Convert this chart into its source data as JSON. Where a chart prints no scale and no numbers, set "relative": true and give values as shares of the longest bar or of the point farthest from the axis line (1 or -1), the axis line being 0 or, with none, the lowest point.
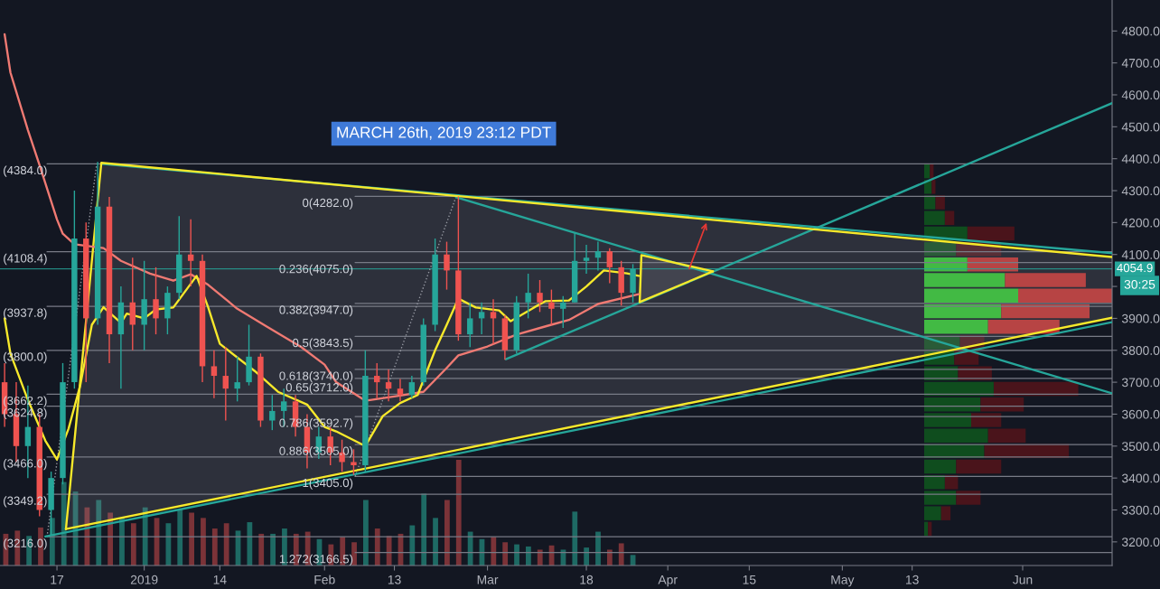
{
  "chart_data": [
    {
      "type": "candlestick",
      "x": [
        "2018-12-08",
        "2018-12-10",
        "2018-12-12",
        "2018-12-14",
        "2018-12-16",
        "2018-12-18",
        "2018-12-20",
        "2018-12-22",
        "2018-12-24",
        "2018-12-26",
        "2018-12-28",
        "2018-12-30",
        "2019-01-01",
        "2019-01-03",
        "2019-01-05",
        "2019-01-07",
        "2019-01-09",
        "2019-01-11",
        "2019-01-13",
        "2019-01-15",
        "2019-01-17",
        "2019-01-19",
        "2019-01-21",
        "2019-01-23",
        "2019-01-25",
        "2019-01-27",
        "2019-01-29",
        "2019-01-31",
        "2019-02-02",
        "2019-02-04",
        "2019-02-06",
        "2019-02-08",
        "2019-02-10",
        "2019-02-12",
        "2019-02-14",
        "2019-02-16",
        "2019-02-18",
        "2019-02-20",
        "2019-02-22",
        "2019-02-24",
        "2019-02-26",
        "2019-02-28",
        "2019-03-02",
        "2019-03-04",
        "2019-03-06",
        "2019-03-08",
        "2019-03-10",
        "2019-03-12",
        "2019-03-14",
        "2019-03-16",
        "2019-03-18",
        "2019-03-20",
        "2019-03-22",
        "2019-03-24",
        "2019-03-26"
      ],
      "ohlc": [
        [
          3700,
          3760,
          3560,
          3600
        ],
        [
          3600,
          3700,
          3450,
          3500
        ],
        [
          3500,
          3690,
          3400,
          3560
        ],
        [
          3560,
          3600,
          3280,
          3300
        ],
        [
          3300,
          3420,
          3220,
          3400
        ],
        [
          3400,
          3760,
          3380,
          3700
        ],
        [
          3700,
          4300,
          3680,
          4150
        ],
        [
          4150,
          4200,
          3700,
          3900
        ],
        [
          3900,
          4390,
          3880,
          4250
        ],
        [
          4250,
          4280,
          3760,
          3850
        ],
        [
          3850,
          4000,
          3680,
          3950
        ],
        [
          3950,
          4090,
          3800,
          3880
        ],
        [
          3880,
          4080,
          3800,
          3960
        ],
        [
          3960,
          4060,
          3850,
          3900
        ],
        [
          3900,
          4000,
          3850,
          3980
        ],
        [
          3980,
          4220,
          3960,
          4100
        ],
        [
          4100,
          4210,
          4000,
          4080
        ],
        [
          4080,
          4100,
          3700,
          3750
        ],
        [
          3750,
          3800,
          3650,
          3720
        ],
        [
          3720,
          3810,
          3580,
          3680
        ],
        [
          3680,
          3780,
          3640,
          3700
        ],
        [
          3700,
          3880,
          3690,
          3780
        ],
        [
          3780,
          3790,
          3560,
          3580
        ],
        [
          3580,
          3660,
          3550,
          3610
        ],
        [
          3610,
          3680,
          3560,
          3640
        ],
        [
          3640,
          3660,
          3530,
          3560
        ],
        [
          3560,
          3600,
          3430,
          3480
        ],
        [
          3480,
          3560,
          3460,
          3530
        ],
        [
          3530,
          3560,
          3440,
          3480
        ],
        [
          3480,
          3520,
          3420,
          3450
        ],
        [
          3450,
          3490,
          3410,
          3440
        ],
        [
          3440,
          3800,
          3420,
          3720
        ],
        [
          3720,
          3760,
          3650,
          3700
        ],
        [
          3700,
          3740,
          3640,
          3680
        ],
        [
          3680,
          3710,
          3640,
          3660
        ],
        [
          3660,
          3720,
          3650,
          3700
        ],
        [
          3700,
          3900,
          3690,
          3880
        ],
        [
          3880,
          4150,
          3860,
          4100
        ],
        [
          4100,
          4140,
          3990,
          4050
        ],
        [
          4050,
          4282,
          3830,
          3850
        ],
        [
          3850,
          3950,
          3810,
          3900
        ],
        [
          3900,
          3950,
          3850,
          3920
        ],
        [
          3920,
          3960,
          3820,
          3900
        ],
        [
          3900,
          3910,
          3770,
          3800
        ],
        [
          3800,
          3970,
          3790,
          3950
        ],
        [
          3950,
          4040,
          3900,
          3980
        ],
        [
          3980,
          4020,
          3920,
          3950
        ],
        [
          3950,
          3990,
          3880,
          3930
        ],
        [
          3930,
          3970,
          3870,
          3950
        ],
        [
          3950,
          4170,
          3950,
          4080
        ],
        [
          4080,
          4130,
          4040,
          4090
        ],
        [
          4090,
          4140,
          4050,
          4110
        ],
        [
          4110,
          4120,
          4010,
          4060
        ],
        [
          4060,
          4080,
          3940,
          3980
        ],
        [
          3980,
          4070,
          3950,
          4054.9
        ]
      ],
      "colors": [
        "#ef5350",
        "#ef5350",
        "#26a69a",
        "#ef5350",
        "#26a69a",
        "#26a69a",
        "#26a69a",
        "#ef5350",
        "#26a69a",
        "#ef5350",
        "#26a69a",
        "#ef5350",
        "#26a69a",
        "#ef5350",
        "#26a69a",
        "#26a69a",
        "#ef5350",
        "#ef5350",
        "#ef5350",
        "#ef5350",
        "#26a69a",
        "#26a69a",
        "#ef5350",
        "#26a69a",
        "#26a69a",
        "#ef5350",
        "#ef5350",
        "#26a69a",
        "#ef5350",
        "#ef5350",
        "#ef5350",
        "#26a69a",
        "#ef5350",
        "#ef5350",
        "#ef5350",
        "#26a69a",
        "#26a69a",
        "#26a69a",
        "#ef5350",
        "#ef5350",
        "#26a69a",
        "#26a69a",
        "#ef5350",
        "#ef5350",
        "#26a69a",
        "#26a69a",
        "#ef5350",
        "#ef5350",
        "#26a69a",
        "#26a69a",
        "#26a69a",
        "#26a69a",
        "#ef5350",
        "#ef5350",
        "#26a69a"
      ],
      "series": [
        {
          "type": "line",
          "name": "(4384.0)",
          "color": "#787b86",
          "x": [
            "2018-12-15T07:00",
            "2019-06-16T09:00"
          ],
          "values": [
            4384,
            4384
          ]
        },
        {
          "type": "line",
          "name": "(4108.4)",
          "color": "#787b86",
          "x": [
            "2018-12-15T07:00",
            "2019-06-16T09:00"
          ],
          "values": [
            4108.4,
            4108.4
          ]
        },
        {
          "type": "line",
          "name": "(3937.8)",
          "color": "#787b86",
          "x": [
            "2018-12-15T07:00",
            "2019-06-16T09:00"
          ],
          "values": [
            3937.8,
            3937.8
          ]
        },
        {
          "type": "line",
          "name": "(3800.0)",
          "color": "#787b86",
          "x": [
            "2018-12-15T07:00",
            "2019-06-16T09:00"
          ],
          "values": [
            3800,
            3800
          ]
        },
        {
          "type": "line",
          "name": "(3662.2)",
          "color": "#787b86",
          "x": [
            "2018-12-15T07:00",
            "2019-06-16T09:00"
          ],
          "values": [
            3662.2,
            3662.2
          ]
        },
        {
          "type": "line",
          "name": "(3624.8)",
          "color": "#787b86",
          "x": [
            "2018-12-15T07:00",
            "2019-06-16T09:00"
          ],
          "values": [
            3624.8,
            3624.8
          ]
        },
        {
          "type": "line",
          "name": "(3466.0)",
          "color": "#787b86",
          "x": [
            "2018-12-15T07:00",
            "2019-06-16T09:00"
          ],
          "values": [
            3466,
            3466
          ]
        },
        {
          "type": "line",
          "name": "(3349.2)",
          "color": "#787b86",
          "x": [
            "2018-12-15T07:00",
            "2019-06-16T09:00"
          ],
          "values": [
            3349.2,
            3349.2
          ]
        },
        {
          "type": "line",
          "name": "(3216.0)",
          "color": "#787b86",
          "x": [
            "2018-12-15T07:00",
            "2019-06-16T09:00"
          ],
          "values": [
            3216,
            3216
          ]
        },
        {
          "type": "line",
          "name": "0(4282.0)",
          "color": "#787b86",
          "x": [
            "2019-02-06T06:00",
            "2019-06-16T09:00"
          ],
          "values": [
            4282,
            4282
          ]
        },
        {
          "type": "line",
          "name": "0.236(4075.0)",
          "color": "#787b86",
          "x": [
            "2019-02-06T06:00",
            "2019-06-16T09:00"
          ],
          "values": [
            4075,
            4075
          ]
        },
        {
          "type": "line",
          "name": "0.382(3947.0)",
          "color": "#787b86",
          "x": [
            "2019-02-06T06:00",
            "2019-06-16T09:00"
          ],
          "values": [
            3947,
            3947
          ]
        },
        {
          "type": "line",
          "name": "0.5(3843.5)",
          "color": "#787b86",
          "x": [
            "2019-02-06T06:00",
            "2019-06-16T09:00"
          ],
          "values": [
            3843.5,
            3843.5
          ]
        },
        {
          "type": "line",
          "name": "0.618(3740.0)",
          "color": "#787b86",
          "x": [
            "2019-02-06T06:00",
            "2019-06-16T09:00"
          ],
          "values": [
            3740,
            3740
          ]
        },
        {
          "type": "line",
          "name": "0.65(3712.0)",
          "color": "#787b86",
          "x": [
            "2019-02-06T06:00",
            "2019-06-16T09:00"
          ],
          "values": [
            3712,
            3712
          ]
        },
        {
          "type": "line",
          "name": "0.786(3592.7)",
          "color": "#787b86",
          "x": [
            "2019-02-06T06:00",
            "2019-06-16T09:00"
          ],
          "values": [
            3592.7,
            3592.7
          ]
        },
        {
          "type": "line",
          "name": "0.886(3505.0)",
          "color": "#787b86",
          "x": [
            "2019-02-06T06:00",
            "2019-06-16T09:00"
          ],
          "values": [
            3505,
            3505
          ]
        },
        {
          "type": "line",
          "name": "1(3405.0)",
          "color": "#787b86",
          "x": [
            "2019-02-06T06:00",
            "2019-06-16T09:00"
          ],
          "values": [
            3405,
            3405
          ]
        },
        {
          "type": "line",
          "name": "1.272(3166.5)",
          "color": "#787b86",
          "x": [
            "2019-02-06T06:00",
            "2019-06-16T09:00"
          ],
          "values": [
            3166.5,
            3166.5
          ]
        },
        {
          "type": "line",
          "color": "#9598a1",
          "line_style": "dotted",
          "x": [
            "2018-12-15T07:00",
            "2018-12-23T20:00"
          ],
          "values": [
            3216,
            4384
          ]
        },
        {
          "type": "line",
          "color": "#9598a1",
          "line_style": "dotted",
          "x": [
            "2019-02-06T06:00",
            "2019-02-23T15:00"
          ],
          "values": [
            3405,
            4282
          ]
        },
        {
          "type": "line",
          "color": "#26a69a",
          "x": [
            "2018-12-15T00:00",
            "2019-06-16T09:00"
          ],
          "values": [
            3217,
            3888
          ]
        },
        {
          "type": "line",
          "color": "#26a69a",
          "x": [
            "2018-12-24T15:00",
            "2019-06-16T09:00"
          ],
          "values": [
            4384,
            4104
          ]
        },
        {
          "type": "line",
          "color": "#26a69a",
          "x": [
            "2019-02-23T15:00",
            "2019-06-16T09:00"
          ],
          "values": [
            4279,
            3665
          ]
        },
        {
          "type": "line",
          "color": "#26a69a",
          "x": [
            "2019-03-04T04:00",
            "2019-06-16T09:00"
          ],
          "values": [
            3772,
            4574
          ]
        },
        {
          "type": "line",
          "color": "#f7e92b",
          "x": [
            "2018-12-18T13:00",
            "2018-12-24T15:00",
            "2019-06-16T09:00"
          ],
          "values": [
            3240,
            4387,
            4092
          ],
          "lower": [
            3240,
            3262,
            3902
          ],
          "upper": [
            3240,
            4387,
            4092
          ]
        },
        {
          "type": "line",
          "color": "#f7e92b",
          "x": [
            "2018-12-18T13:00",
            "2019-06-16T09:00"
          ],
          "values": [
            3240,
            3902
          ]
        },
        {
          "type": "line",
          "color": "#f7e92b",
          "x": [
            "2019-03-27T04:00",
            "2019-03-27T11:00",
            "2019-04-08T18:00"
          ],
          "values": [
            3951,
            4098,
            4047
          ],
          "lower": [
            3951,
            3953,
            4047
          ],
          "upper": [
            3951,
            4098,
            4047
          ]
        },
        {
          "type": "line",
          "color": "#f7e92b",
          "x": [
            "2019-03-27T04:00",
            "2019-04-08T18:00"
          ],
          "values": [
            3951,
            4047
          ]
        },
        {
          "type": "line",
          "color": "#f07a73",
          "x": [
            "2018-12-08",
            "2018-12-09",
            "2018-12-12",
            "2018-12-14",
            "2018-12-17",
            "2018-12-18",
            "2018-12-20",
            "2018-12-25",
            "2018-12-28",
            "2019-01-02",
            "2019-01-06",
            "2019-01-09",
            "2019-01-12",
            "2019-01-17",
            "2019-01-22",
            "2019-01-28",
            "2019-02-01",
            "2019-02-03",
            "2019-02-08",
            "2019-02-14",
            "2019-02-18",
            "2019-02-22",
            "2019-02-24",
            "2019-03-01",
            "2019-03-06",
            "2019-03-11",
            "2019-03-15",
            "2019-03-20",
            "2019-03-27"
          ],
          "values": [
            4790,
            4670,
            4490,
            4380,
            4210,
            4165,
            4132,
            4120,
            4080,
            4040,
            4018,
            4038,
            4005,
            3930,
            3875,
            3810,
            3755,
            3700,
            3642,
            3658,
            3670,
            3745,
            3784,
            3812,
            3849,
            3875,
            3895,
            3945,
            3976
          ]
        },
        {
          "type": "line",
          "color": "#f7e92b",
          "x": [
            "2018-12-08",
            "2018-12-09",
            "2018-12-12",
            "2018-12-15",
            "2018-12-17",
            "2018-12-19",
            "2018-12-21",
            "2018-12-23",
            "2018-12-25",
            "2018-12-28",
            "2018-12-29",
            "2019-01-01",
            "2019-01-03",
            "2019-01-06",
            "2019-01-10",
            "2019-01-12",
            "2019-01-14",
            "2019-01-20",
            "2019-01-24",
            "2019-01-29",
            "2019-02-01",
            "2019-02-03",
            "2019-02-08",
            "2019-02-11",
            "2019-02-14",
            "2019-02-17",
            "2019-02-20",
            "2019-02-22",
            "2019-02-24",
            "2019-02-27",
            "2019-03-03",
            "2019-03-05",
            "2019-03-09",
            "2019-03-11",
            "2019-03-15",
            "2019-03-18",
            "2019-03-21",
            "2019-03-25",
            "2019-03-27"
          ],
          "values": [
            3900,
            3790,
            3645,
            3517,
            3458,
            3555,
            3690,
            3880,
            3935,
            3886,
            3915,
            3900,
            3928,
            3934,
            4033,
            3934,
            3820,
            3735,
            3670,
            3630,
            3560,
            3546,
            3500,
            3594,
            3635,
            3660,
            3800,
            3880,
            3962,
            3934,
            3925,
            3891,
            3934,
            3954,
            3956,
            4000,
            4050,
            4041,
            4033
          ]
        }
      ],
      "xlim": [
        "2018-12-07T05:00",
        "2019-06-16T09:00"
      ],
      "ylim": [
        3126,
        4897
      ],
      "xticks": [
        {
          "value": "2018-12-17",
          "label": "17"
        },
        {
          "value": "2019-01-01",
          "label": "2019"
        },
        {
          "value": "2019-01-14",
          "label": "14"
        },
        {
          "value": "2019-02-01",
          "label": "Feb"
        },
        {
          "value": "2019-02-13",
          "label": "13"
        },
        {
          "value": "2019-03-01",
          "label": "Mar"
        },
        {
          "value": "2019-03-18",
          "label": "18"
        },
        {
          "value": "2019-04-01",
          "label": "Apr"
        },
        {
          "value": "2019-04-15",
          "label": "15"
        },
        {
          "value": "2019-05-01",
          "label": "May"
        },
        {
          "value": "2019-05-13",
          "label": "13"
        },
        {
          "value": "2019-06-01",
          "label": "Jun"
        }
      ],
      "yticks": [
        {
          "value": 3200,
          "label": "3200.0"
        },
        {
          "value": 3300,
          "label": "3300.0"
        },
        {
          "value": 3400,
          "label": "3400.0"
        },
        {
          "value": 3500,
          "label": "3500.0"
        },
        {
          "value": 3600,
          "label": "3600.0"
        },
        {
          "value": 3700,
          "label": "3700.0"
        },
        {
          "value": 3800,
          "label": "3800.0"
        },
        {
          "value": 3900,
          "label": "3900.0"
        },
        {
          "value": 4000,
          "label": null
        },
        {
          "value": 4100,
          "label": "4100.0"
        },
        {
          "value": 4200,
          "label": "4200.0"
        },
        {
          "value": 4300,
          "label": "4300.0"
        },
        {
          "value": 4400,
          "label": "4400.0"
        },
        {
          "value": 4500,
          "label": "4500.0"
        },
        {
          "value": 4600,
          "label": "4600.0"
        },
        {
          "value": 4700,
          "label": "4700.0"
        },
        {
          "value": 4800,
          "label": "4800.0"
        }
      ],
      "ref_lines": [
        {
          "axis": "y",
          "value": 4054.9,
          "label": "4054.9",
          "color": "#26a69a"
        }
      ],
      "annotations": [
        "MARCH 26th, 2019 23:12 PDT",
        "30:25"
      ]
    },
    {
      "type": "bar",
      "relative": true,
      "orientation": "horizontal",
      "stacked": true,
      "categories": [
        null,
        null,
        null,
        null,
        null,
        null,
        null,
        null,
        null,
        null,
        null,
        null,
        null,
        null,
        null,
        null,
        null,
        null,
        null,
        null,
        null,
        null,
        null,
        null
      ],
      "series": [
        {
          "color": "#0f4d1e",
          "values": [
            0.03,
            0.04,
            0.06,
            0.11,
            0.23,
            0.17,
            null,
            null,
            null,
            null,
            null,
            0.19,
            0.16,
            0.18,
            0.37,
            0.3,
            0.25,
            0.34,
            0.32,
            0.17,
            0.11,
            0.17,
            0.09,
            0.02
          ]
        },
        {
          "color": "#2dc32d",
          "values": [
            null,
            null,
            null,
            null,
            null,
            null,
            0.23,
            0.43,
            0.5,
            0.41,
            0.34,
            null,
            null,
            null,
            null,
            null,
            null,
            null,
            null,
            null,
            null,
            null,
            null,
            null
          ]
        },
        {
          "color": "#4a141b",
          "values": [
            0.02,
            0.02,
            0.05,
            0.05,
            0.25,
            0.24,
            null,
            null,
            null,
            null,
            null,
            0.13,
            0.13,
            0.18,
            0.45,
            0.23,
            0.16,
            0.2,
            0.45,
            0.24,
            0.07,
            0.13,
            0.05,
            0.02
          ]
        },
        {
          "color": "#c0302e",
          "values": [
            null,
            null,
            null,
            null,
            null,
            null,
            0.27,
            0.43,
            0.5,
            0.47,
            0.38,
            null,
            null,
            null,
            null,
            null,
            null,
            null,
            null,
            null,
            null,
            null,
            null,
            null
          ]
        }
      ]
    },
    {
      "type": "bar",
      "relative": true,
      "categories": [
        null,
        null,
        null,
        null,
        null,
        null,
        null,
        null,
        null,
        null,
        null,
        null,
        null,
        null,
        null,
        null,
        null,
        null,
        null,
        null,
        null,
        null,
        null,
        null,
        null,
        null,
        null,
        null,
        null,
        null,
        null,
        null,
        null,
        null,
        null,
        null,
        null,
        null,
        null,
        null,
        null,
        null,
        null,
        null,
        null,
        null,
        null,
        null,
        null,
        null,
        null,
        null,
        null,
        null,
        null
      ],
      "values": [
        0.3,
        0.33,
        0.28,
        0.36,
        0.45,
        0.79,
        0.7,
        0.55,
        0.62,
        0.5,
        0.45,
        0.4,
        0.55,
        0.45,
        0.4,
        0.53,
        0.5,
        0.45,
        0.35,
        0.4,
        0.33,
        0.41,
        0.3,
        0.3,
        0.35,
        0.3,
        0.32,
        0.25,
        0.2,
        0.27,
        0.22,
        0.62,
        0.35,
        0.28,
        0.3,
        0.38,
        0.68,
        0.45,
        0.62,
        1,
        0.32,
        0.25,
        0.27,
        0.22,
        0.2,
        0.18,
        0.15,
        0.19,
        0.15,
        0.51,
        0.17,
        0.32,
        0.15,
        0.21,
        0.1
      ],
      "colors": [
        "#7b3338",
        "#7b3338",
        "#1e6a64",
        "#7b3338",
        "#1e6a64",
        "#1e6a64",
        "#1e6a64",
        "#7b3338",
        "#1e6a64",
        "#7b3338",
        "#1e6a64",
        "#7b3338",
        "#1e6a64",
        "#7b3338",
        "#1e6a64",
        "#1e6a64",
        "#7b3338",
        "#7b3338",
        "#7b3338",
        "#7b3338",
        "#1e6a64",
        "#1e6a64",
        "#7b3338",
        "#1e6a64",
        "#1e6a64",
        "#7b3338",
        "#7b3338",
        "#1e6a64",
        "#7b3338",
        "#7b3338",
        "#7b3338",
        "#1e6a64",
        "#7b3338",
        "#7b3338",
        "#7b3338",
        "#1e6a64",
        "#1e6a64",
        "#1e6a64",
        "#7b3338",
        "#7b3338",
        "#1e6a64",
        "#1e6a64",
        "#7b3338",
        "#7b3338",
        "#1e6a64",
        "#1e6a64",
        "#7b3338",
        "#7b3338",
        "#1e6a64",
        "#1e6a64",
        "#1e6a64",
        "#1e6a64",
        "#7b3338",
        "#7b3338",
        "#1e6a64"
      ]
    }
  ]
}
